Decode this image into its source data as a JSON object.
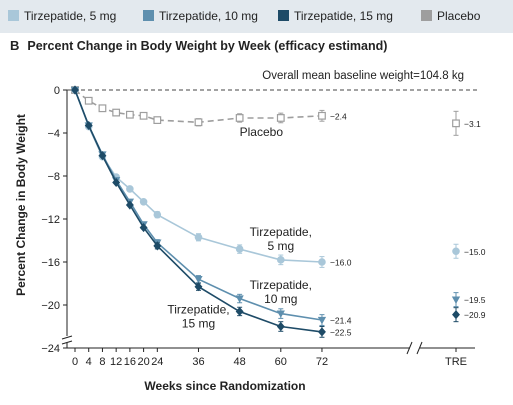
{
  "legend": [
    {
      "label": "Tirzepatide, 5 mg",
      "color": "#a9c7d9"
    },
    {
      "label": "Tirzepatide, 10 mg",
      "color": "#5e8fae"
    },
    {
      "label": "Tirzepatide, 15 mg",
      "color": "#1e4b67"
    },
    {
      "label": "Placebo",
      "color": "#9e9e9e"
    }
  ],
  "panel": {
    "letter": "B",
    "title": "Percent Change in Body Weight by Week (efficacy estimand)"
  },
  "chart_data": {
    "type": "line",
    "title": "Percent Change in Body Weight by Week (efficacy estimand)",
    "xlabel": "Weeks since Randomization",
    "ylabel": "Percent Change in Body Weight",
    "ylim": [
      -24,
      0
    ],
    "y_ticks": [
      "0",
      "-4",
      "-8",
      "-12",
      "-16",
      "-20",
      "-24"
    ],
    "x_ticks": [
      "0",
      "4",
      "8",
      "12",
      "16",
      "20",
      "24",
      "36",
      "48",
      "60",
      "72",
      "TRE"
    ],
    "baseline_note": "Overall mean baseline weight=104.8 kg",
    "axis_break": true,
    "series": [
      {
        "name": "Tirzepatide, 5 mg",
        "label": "Tirzepatide, 5 mg",
        "color": "#a9c7d9",
        "marker": "circle",
        "dashed": false,
        "x": [
          0,
          4,
          8,
          12,
          16,
          20,
          24,
          36,
          48,
          60,
          72
        ],
        "y": [
          0,
          -3.4,
          -6.2,
          -8.1,
          -9.2,
          -10.4,
          -11.6,
          -13.7,
          -14.8,
          -15.8,
          -16.0
        ],
        "end_label": "−16.0",
        "tre": -15.0,
        "tre_label": "−15.0"
      },
      {
        "name": "Tirzepatide, 10 mg",
        "label": "Tirzepatide, 10 mg",
        "color": "#5e8fae",
        "marker": "triangle",
        "dashed": false,
        "x": [
          0,
          4,
          8,
          12,
          16,
          20,
          24,
          36,
          48,
          60,
          72
        ],
        "y": [
          0,
          -3.3,
          -6.0,
          -8.4,
          -10.4,
          -12.5,
          -14.2,
          -17.6,
          -19.4,
          -20.8,
          -21.4
        ],
        "end_label": "−21.4",
        "tre": -19.5,
        "tre_label": "−19.5"
      },
      {
        "name": "Tirzepatide, 15 mg",
        "label": "Tirzepatide, 15 mg",
        "color": "#1e4b67",
        "marker": "diamond",
        "dashed": false,
        "x": [
          0,
          4,
          8,
          12,
          16,
          20,
          24,
          36,
          48,
          60,
          72
        ],
        "y": [
          0,
          -3.3,
          -6.1,
          -8.6,
          -10.7,
          -12.8,
          -14.5,
          -18.3,
          -20.6,
          -22.0,
          -22.5
        ],
        "end_label": "−22.5",
        "tre": -20.9,
        "tre_label": "−20.9"
      },
      {
        "name": "Placebo",
        "label": "Placebo",
        "color": "#9e9e9e",
        "marker": "square",
        "dashed": true,
        "x": [
          0,
          4,
          8,
          12,
          16,
          20,
          24,
          36,
          48,
          60,
          72
        ],
        "y": [
          0,
          -1.0,
          -1.7,
          -2.1,
          -2.3,
          -2.4,
          -2.8,
          -3.0,
          -2.6,
          -2.6,
          -2.4
        ],
        "end_label": "−2.4",
        "tre": -3.1,
        "tre_label": "−3.1"
      }
    ],
    "annotations": [
      {
        "lines": [
          "Placebo"
        ],
        "x": 48,
        "y": -4.3,
        "anchor": "start"
      },
      {
        "lines": [
          "Tirzepatide,",
          "5 mg"
        ],
        "x": 60,
        "y": -13.6,
        "anchor": "middle"
      },
      {
        "lines": [
          "Tirzepatide,",
          "10 mg"
        ],
        "x": 60,
        "y": -18.5,
        "anchor": "middle"
      },
      {
        "lines": [
          "Tirzepatide,",
          "15 mg"
        ],
        "x": 36,
        "y": -20.8,
        "anchor": "middle"
      }
    ]
  }
}
